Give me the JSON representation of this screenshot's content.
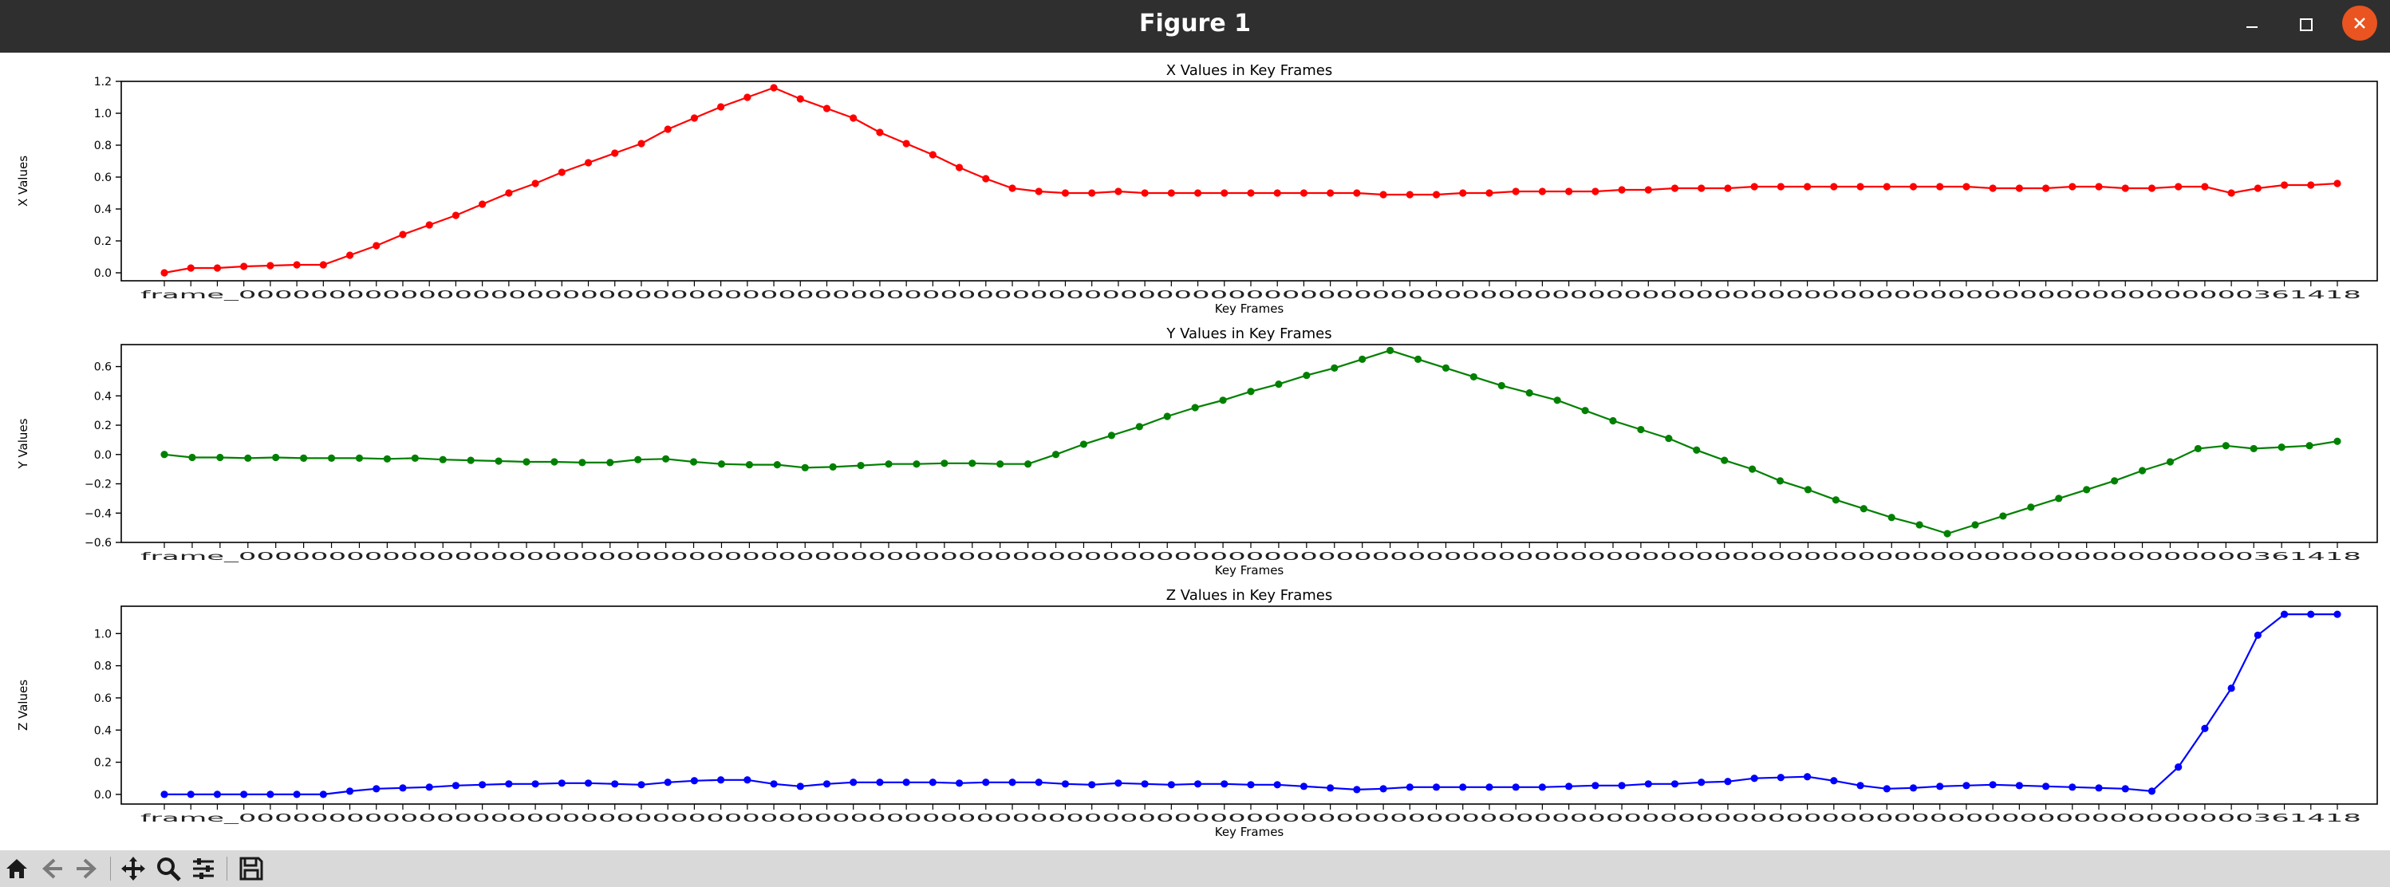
{
  "window": {
    "title": "Figure 1",
    "minimize_icon": "minimize-icon",
    "maximize_icon": "maximize-icon",
    "close_icon": "close-icon"
  },
  "toolbar": {
    "buttons": [
      {
        "name": "home-icon"
      },
      {
        "name": "back-arrow-icon"
      },
      {
        "name": "forward-arrow-icon"
      },
      {
        "name": "pan-icon"
      },
      {
        "name": "zoom-icon"
      },
      {
        "name": "subplots-configure-icon"
      },
      {
        "name": "save-icon"
      }
    ]
  },
  "chart_data": [
    {
      "type": "line",
      "title": "X Values in Key Frames",
      "xlabel": "Key Frames",
      "ylabel": "X Values",
      "ylim": [
        -0.05,
        1.2
      ],
      "yticks": [
        "0.0",
        "0.2",
        "0.4",
        "0.6",
        "0.8",
        "1.0",
        "1.2"
      ],
      "color": "#ff0000",
      "grid": false,
      "series": [
        {
          "values": [
            0.0,
            0.03,
            0.03,
            0.04,
            0.045,
            0.05,
            0.05,
            0.11,
            0.17,
            0.24,
            0.3,
            0.36,
            0.43,
            0.5,
            0.56,
            0.63,
            0.69,
            0.75,
            0.81,
            0.9,
            0.97,
            1.04,
            1.1,
            1.16,
            1.09,
            1.03,
            0.97,
            0.88,
            0.81,
            0.74,
            0.66,
            0.59,
            0.53,
            0.51,
            0.5,
            0.5,
            0.51,
            0.5,
            0.5,
            0.5,
            0.5,
            0.5,
            0.5,
            0.5,
            0.5,
            0.5,
            0.49,
            0.49,
            0.49,
            0.5,
            0.5,
            0.51,
            0.51,
            0.51,
            0.51,
            0.52,
            0.52,
            0.53,
            0.53,
            0.53,
            0.54,
            0.54,
            0.54,
            0.54,
            0.54,
            0.54,
            0.54,
            0.54,
            0.54,
            0.53,
            0.53,
            0.53,
            0.54,
            0.54,
            0.53,
            0.53,
            0.54,
            0.54,
            0.5,
            0.53,
            0.55,
            0.55,
            0.56
          ]
        }
      ]
    },
    {
      "type": "line",
      "title": "Y Values in Key Frames",
      "xlabel": "Key Frames",
      "ylabel": "Y Values",
      "ylim": [
        -0.6,
        0.75
      ],
      "yticks": [
        "−0.6",
        "−0.4",
        "−0.2",
        "0.0",
        "0.2",
        "0.4",
        "0.6"
      ],
      "color": "#008000",
      "grid": false,
      "series": [
        {
          "values": [
            0.0,
            -0.02,
            -0.02,
            -0.025,
            -0.02,
            -0.025,
            -0.025,
            -0.025,
            -0.03,
            -0.025,
            -0.035,
            -0.04,
            -0.045,
            -0.05,
            -0.05,
            -0.055,
            -0.055,
            -0.035,
            -0.03,
            -0.05,
            -0.065,
            -0.07,
            -0.07,
            -0.09,
            -0.085,
            -0.075,
            -0.065,
            -0.065,
            -0.06,
            -0.06,
            -0.065,
            -0.065,
            0.0,
            0.07,
            0.13,
            0.19,
            0.26,
            0.32,
            0.37,
            0.43,
            0.48,
            0.54,
            0.59,
            0.65,
            0.71,
            0.65,
            0.59,
            0.53,
            0.47,
            0.42,
            0.37,
            0.3,
            0.23,
            0.17,
            0.11,
            0.03,
            -0.04,
            -0.1,
            -0.18,
            -0.24,
            -0.31,
            -0.37,
            -0.43,
            -0.48,
            -0.54,
            -0.48,
            -0.42,
            -0.36,
            -0.3,
            -0.24,
            -0.18,
            -0.11,
            -0.05,
            0.04,
            0.06,
            0.04,
            0.05,
            0.06,
            0.09
          ]
        }
      ]
    },
    {
      "type": "line",
      "title": "Z Values in Key Frames",
      "xlabel": "Key Frames",
      "ylabel": "Z Values",
      "ylim": [
        -0.06,
        1.17
      ],
      "yticks": [
        "0.0",
        "0.2",
        "0.4",
        "0.6",
        "0.8",
        "1.0"
      ],
      "color": "#0000ff",
      "grid": false,
      "series": [
        {
          "values": [
            0.0,
            0.0,
            0.0,
            0.0,
            0.0,
            0.0,
            0.0,
            0.02,
            0.035,
            0.04,
            0.045,
            0.055,
            0.06,
            0.065,
            0.065,
            0.07,
            0.07,
            0.065,
            0.06,
            0.075,
            0.085,
            0.09,
            0.09,
            0.065,
            0.05,
            0.065,
            0.075,
            0.075,
            0.075,
            0.075,
            0.07,
            0.075,
            0.075,
            0.075,
            0.065,
            0.06,
            0.07,
            0.065,
            0.06,
            0.065,
            0.065,
            0.06,
            0.06,
            0.05,
            0.04,
            0.03,
            0.035,
            0.045,
            0.045,
            0.045,
            0.045,
            0.045,
            0.045,
            0.05,
            0.055,
            0.055,
            0.065,
            0.065,
            0.075,
            0.08,
            0.1,
            0.105,
            0.11,
            0.085,
            0.055,
            0.035,
            0.04,
            0.05,
            0.055,
            0.06,
            0.055,
            0.05,
            0.045,
            0.04,
            0.035,
            0.02,
            0.17,
            0.41,
            0.66,
            0.99,
            1.12,
            1.12,
            1.12
          ]
        }
      ]
    }
  ],
  "x_axis": {
    "first_tick_label": "frame_0",
    "last_tick_label": "frame_361418",
    "visible_label_fragments": "frame_0000000000000000000000000000000000000000000000000000000000000000000000000000000000000000000000000000000000000000361418"
  }
}
